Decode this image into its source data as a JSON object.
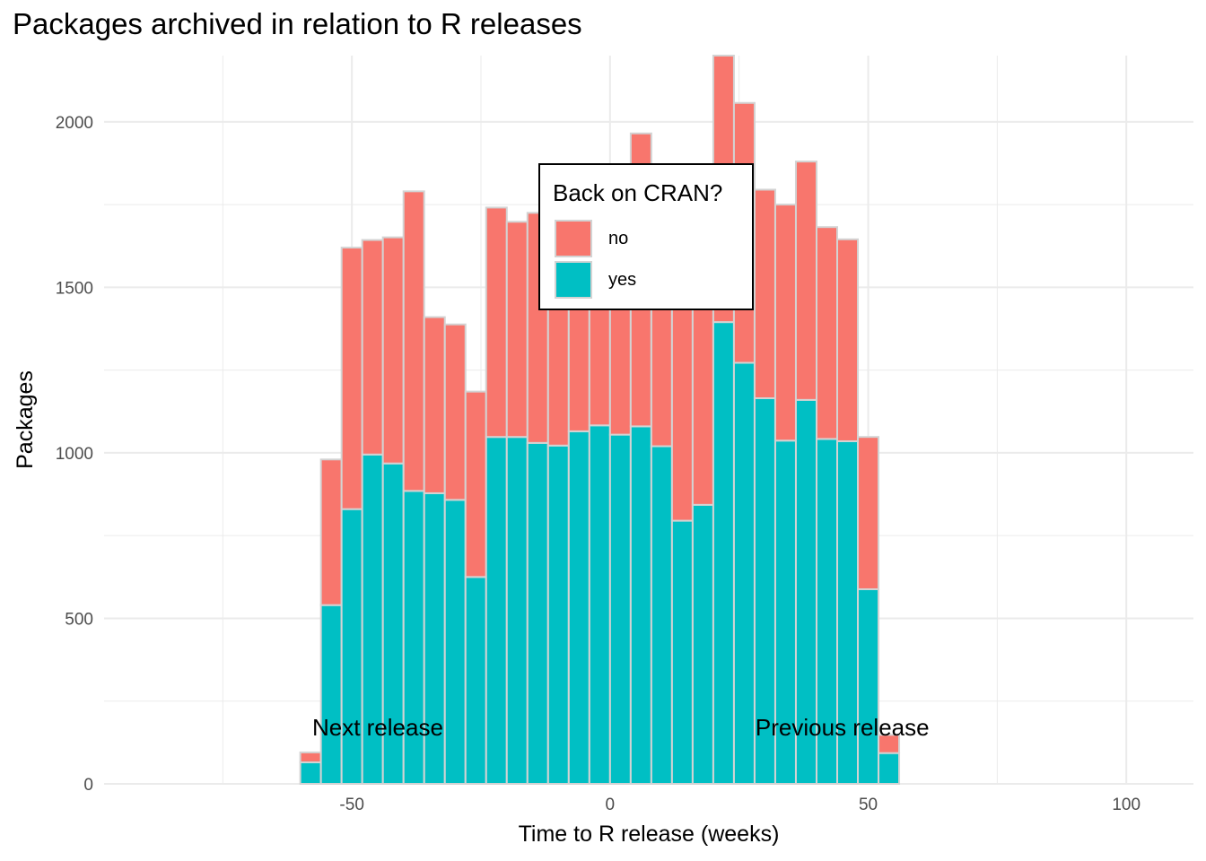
{
  "chart_data": {
    "type": "bar",
    "stacked": true,
    "title": "Packages archived in relation to R releases",
    "xlabel": "Time to R release (weeks)",
    "ylabel": "Packages",
    "xlim": [
      -98,
      113
    ],
    "ylim": [
      0,
      2200
    ],
    "x_ticks": [
      -50,
      0,
      50,
      100
    ],
    "y_ticks": [
      0,
      500,
      1000,
      1500,
      2000
    ],
    "bin_width": 4,
    "grid": true,
    "legend": {
      "title": "Back on CRAN?",
      "placement": "top-center",
      "entries": [
        "no",
        "yes"
      ]
    },
    "colors": {
      "no": "#F8766D",
      "yes": "#00BFC4",
      "bar_outline": "#d3d3d3"
    },
    "x": [
      -58,
      -54,
      -50,
      -46,
      -42,
      -38,
      -34,
      -30,
      -26,
      -22,
      -18,
      -14,
      -10,
      -6,
      -2,
      2,
      6,
      10,
      14,
      18,
      22,
      26,
      30,
      34,
      38,
      42,
      46,
      50,
      54,
      58
    ],
    "series": [
      {
        "name": "yes",
        "values": [
          65,
          540,
          830,
          995,
          968,
          885,
          878,
          858,
          625,
          1048,
          1048,
          1030,
          1022,
          1065,
          1083,
          1055,
          1080,
          1020,
          795,
          843,
          1395,
          1272,
          1165,
          1037,
          1160,
          1042,
          1035,
          588,
          93,
          0
        ]
      },
      {
        "name": "no",
        "values": [
          30,
          440,
          790,
          648,
          683,
          905,
          532,
          530,
          560,
          693,
          650,
          695,
          708,
          680,
          720,
          745,
          885,
          725,
          870,
          915,
          805,
          785,
          630,
          713,
          720,
          640,
          610,
          460,
          55,
          0
        ]
      }
    ],
    "annotations": [
      {
        "text": "Next release",
        "x": -45,
        "y": 190
      },
      {
        "text": "Previous release",
        "x": 45,
        "y": 190
      }
    ]
  }
}
